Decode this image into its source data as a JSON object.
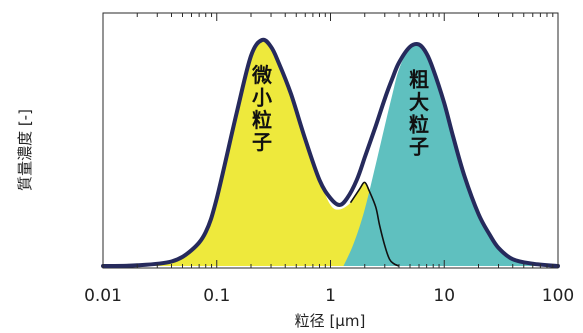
{
  "chart_data": {
    "type": "area",
    "x_scale": "log",
    "xlabel": "粒径 [μm]",
    "ylabel": "質量濃度 [-]",
    "xlim": [
      0.01,
      100
    ],
    "ylim": [
      0,
      1
    ],
    "x_ticks": [
      "0.01",
      "0.1",
      "1",
      "10",
      "100"
    ],
    "x_tick_values": [
      0.01,
      0.1,
      1,
      10,
      100
    ],
    "grid": false,
    "series": [
      {
        "name": "微小粒子",
        "color": "#eee93c",
        "x": [
          0.01,
          0.02,
          0.04,
          0.06,
          0.08,
          0.1,
          0.15,
          0.2,
          0.25,
          0.3,
          0.35,
          0.45,
          0.6,
          0.8,
          1.0,
          1.2,
          1.5,
          1.8,
          2.0,
          2.2,
          2.5,
          2.7,
          3.0,
          3.3,
          3.6,
          4.0
        ],
        "values": [
          0.0,
          0.003,
          0.02,
          0.07,
          0.15,
          0.3,
          0.68,
          0.93,
          1.0,
          0.97,
          0.9,
          0.76,
          0.56,
          0.38,
          0.27,
          0.25,
          0.28,
          0.34,
          0.37,
          0.33,
          0.26,
          0.18,
          0.09,
          0.03,
          0.01,
          0.0
        ]
      },
      {
        "name": "粗大粒子",
        "color": "#5fc0bf",
        "x": [
          1.3,
          1.6,
          2.0,
          2.5,
          3.0,
          3.5,
          4.0,
          5.0,
          6.0,
          7.0,
          8.0,
          10.0,
          12.0,
          15.0,
          20.0,
          25.0,
          30.0,
          40.0,
          60.0,
          100.0
        ],
        "values": [
          0.0,
          0.1,
          0.25,
          0.45,
          0.62,
          0.76,
          0.87,
          0.97,
          0.98,
          0.94,
          0.87,
          0.72,
          0.57,
          0.4,
          0.23,
          0.14,
          0.08,
          0.03,
          0.01,
          0.0
        ]
      }
    ],
    "envelope": {
      "x": [
        0.01,
        0.02,
        0.04,
        0.06,
        0.08,
        0.1,
        0.15,
        0.2,
        0.25,
        0.3,
        0.35,
        0.45,
        0.6,
        0.8,
        1.0,
        1.2,
        1.4,
        1.7,
        2.0,
        2.5,
        3.0,
        3.5,
        4.0,
        5.0,
        6.0,
        7.0,
        8.0,
        10.0,
        12.0,
        15.0,
        20.0,
        25.0,
        30.0,
        40.0,
        60.0,
        100.0
      ],
      "values": [
        0.0,
        0.003,
        0.02,
        0.07,
        0.15,
        0.3,
        0.68,
        0.93,
        1.0,
        0.97,
        0.9,
        0.76,
        0.56,
        0.38,
        0.3,
        0.27,
        0.3,
        0.38,
        0.48,
        0.62,
        0.74,
        0.83,
        0.9,
        0.97,
        0.98,
        0.94,
        0.87,
        0.72,
        0.57,
        0.4,
        0.23,
        0.14,
        0.08,
        0.03,
        0.01,
        0.0
      ]
    },
    "annotations": [
      {
        "text": "微小粒子",
        "series": "微小粒子"
      },
      {
        "text": "粗大粒子",
        "series": "粗大粒子"
      }
    ]
  }
}
